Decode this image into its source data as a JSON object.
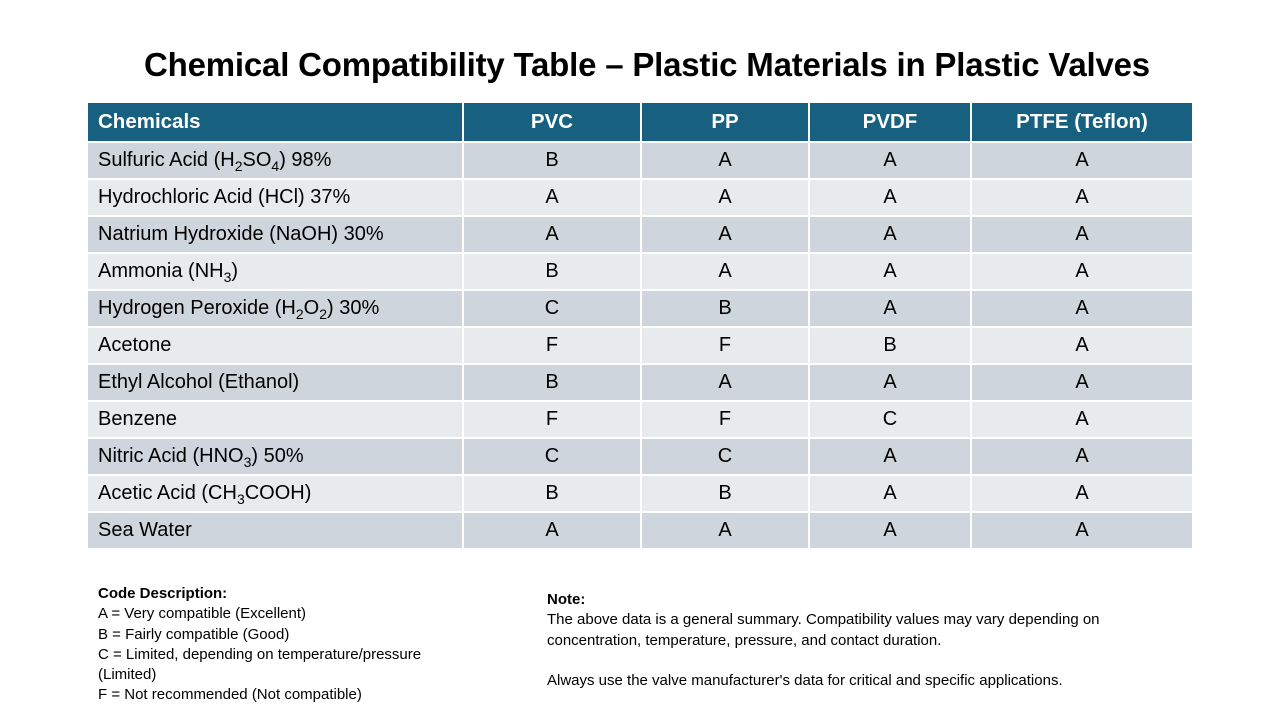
{
  "title": "Chemical Compatibility Table – Plastic Materials in Plastic Valves",
  "table": {
    "headers": [
      "Chemicals",
      "PVC",
      "PP",
      "PVDF",
      "PTFE (Teflon)"
    ],
    "rows": [
      {
        "chemical": {
          "pre": "Sulfuric Acid (H",
          "s1": "2",
          "mid": "SO",
          "s2": "4",
          "post": ") 98%"
        },
        "pvc": "B",
        "pp": "A",
        "pvdf": "A",
        "ptfe": "A"
      },
      {
        "chemical": {
          "pre": "Hydrochloric Acid (HCl) 37%"
        },
        "pvc": "A",
        "pp": "A",
        "pvdf": "A",
        "ptfe": "A"
      },
      {
        "chemical": {
          "pre": "Natrium Hydroxide (NaOH) 30%"
        },
        "pvc": "A",
        "pp": "A",
        "pvdf": "A",
        "ptfe": "A"
      },
      {
        "chemical": {
          "pre": "Ammonia (NH",
          "s1": "3",
          "mid": ")"
        },
        "pvc": "B",
        "pp": "A",
        "pvdf": "A",
        "ptfe": "A"
      },
      {
        "chemical": {
          "pre": "Hydrogen Peroxide (H",
          "s1": "2",
          "mid": "O",
          "s2": "2",
          "post": ") 30%"
        },
        "pvc": "C",
        "pp": "B",
        "pvdf": "A",
        "ptfe": "A"
      },
      {
        "chemical": {
          "pre": "Acetone"
        },
        "pvc": "F",
        "pp": "F",
        "pvdf": "B",
        "ptfe": "A"
      },
      {
        "chemical": {
          "pre": "Ethyl Alcohol (Ethanol)"
        },
        "pvc": "B",
        "pp": "A",
        "pvdf": "A",
        "ptfe": "A"
      },
      {
        "chemical": {
          "pre": "Benzene"
        },
        "pvc": "F",
        "pp": "F",
        "pvdf": "C",
        "ptfe": "A"
      },
      {
        "chemical": {
          "pre": "Nitric Acid (HNO",
          "s1": "3",
          "mid": ") 50%"
        },
        "pvc": "C",
        "pp": "C",
        "pvdf": "A",
        "ptfe": "A"
      },
      {
        "chemical": {
          "pre": "Acetic Acid (CH",
          "s1": "3",
          "mid": "COOH)"
        },
        "pvc": "B",
        "pp": "B",
        "pvdf": "A",
        "ptfe": "A"
      },
      {
        "chemical": {
          "pre": "Sea Water"
        },
        "pvc": "A",
        "pp": "A",
        "pvdf": "A",
        "ptfe": "A"
      }
    ]
  },
  "codes": {
    "heading": "Code Description:",
    "items": [
      "A = Very compatible (Excellent)",
      "B = Fairly compatible (Good)",
      "C = Limited, depending on temperature/pressure (Limited)",
      "F = Not recommended (Not compatible)"
    ]
  },
  "note": {
    "heading": "Note:",
    "p1": "The above data is a general summary. Compatibility values may vary depending on concentration, temperature, pressure, and contact duration.",
    "p2": "Always use the valve manufacturer's data for critical and specific applications."
  },
  "colors": {
    "header_bg": "#17607f",
    "row_dark": "#cfd5dc",
    "row_light": "#e8ebee"
  }
}
